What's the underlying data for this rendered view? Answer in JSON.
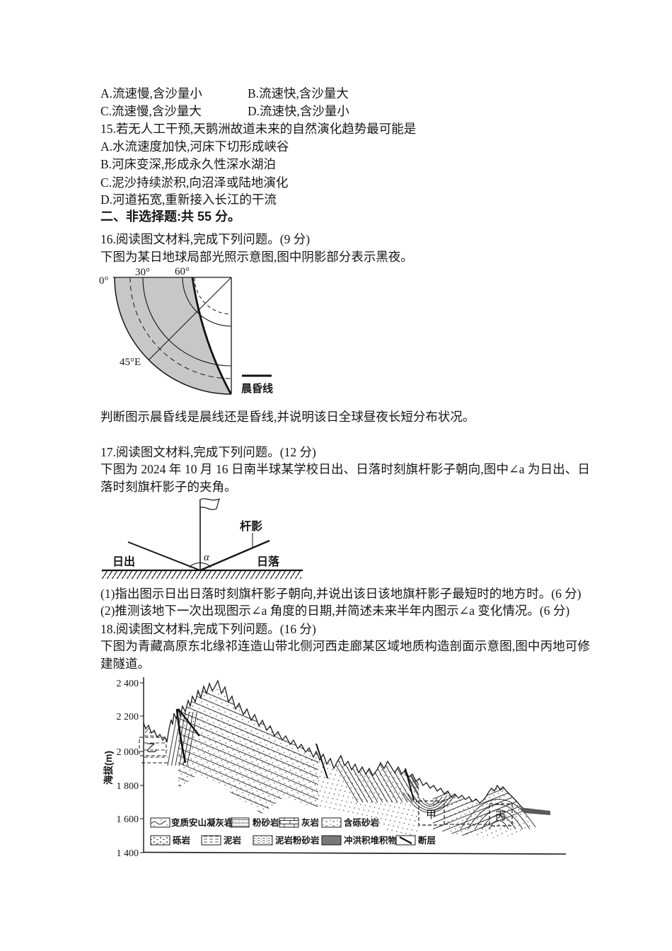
{
  "content": {
    "q14": {
      "opt_a": "A.流速慢,含沙量小",
      "opt_b": "B.流速快,含沙量大",
      "opt_c": "C.流速慢,含沙量大",
      "opt_d": "D.流速快,含沙量小"
    },
    "q15": {
      "stem": "15.若无人工干预,天鹅洲故道未来的自然演化趋势最可能是",
      "opt_a": "A.水流速度加快,河床下切形成峡谷",
      "opt_b": "B.河床变深,形成永久性深水湖泊",
      "opt_c": "C.泥沙持续淤积,向沼泽或陆地演化",
      "opt_d": "D.河道拓宽,重新接入长江的干流"
    },
    "section_heading": "二、非选择题:共 55 分。",
    "q16": {
      "stem": "16.阅读图文材料,完成下列问题。(9 分)",
      "intro": "下图为某日地球局部光照示意图,图中阴影部分表示黑夜。",
      "task": "判断图示晨昏线是晨线还是昏线,并说明该日全球昼夜长短分布状况。"
    },
    "q17": {
      "stem": "17.阅读图文材料,完成下列问题。(12 分)",
      "intro": "下图为 2024 年 10 月 16 日南半球某学校日出、日落时刻旗杆影子朝向,图中∠a 为日出、日落时刻旗杆影子的夹角。",
      "sub1": "(1)指出图示日出日落时刻旗杆影子朝向,并说出该日该地旗杆影子最短时的地方时。(6 分)",
      "sub2": "(2)推测该地下一次出现图示∠a 角度的日期,并简述未来半年内图示∠a 变化情况。(6 分)"
    },
    "q18": {
      "stem": "18.阅读图文材料,完成下列问题。(16 分)",
      "intro": "下图为青藏高原东北缘祁连造山带北侧河西走廊某区域地质构造剖面示意图,图中丙地可修建隧道。"
    }
  },
  "fig16": {
    "tick0": "0°",
    "tick30": "30°",
    "tick60": "60°",
    "meridian": "45°E",
    "legend": "晨昏线",
    "shade_color": "#c7c7c7"
  },
  "fig17": {
    "sunrise": "日出",
    "sunset": "日落",
    "pole_shadow": "杆影",
    "alpha": "α"
  },
  "fig18": {
    "ylabel": "海拔(m)",
    "yticks": [
      "2 400",
      "2 200",
      "2 000",
      "1 800",
      "1 600",
      "1 400"
    ],
    "labels": {
      "yi": "乙",
      "jia": "甲",
      "bing": "丙"
    },
    "legend": [
      "变质安山凝灰岩",
      "粉砂岩",
      "灰岩",
      "含砾砂岩",
      "砾岩",
      "泥岩",
      "泥岩粉砂岩",
      "冲洪积堆积物",
      "断层"
    ],
    "deposit_color": "#777777"
  }
}
